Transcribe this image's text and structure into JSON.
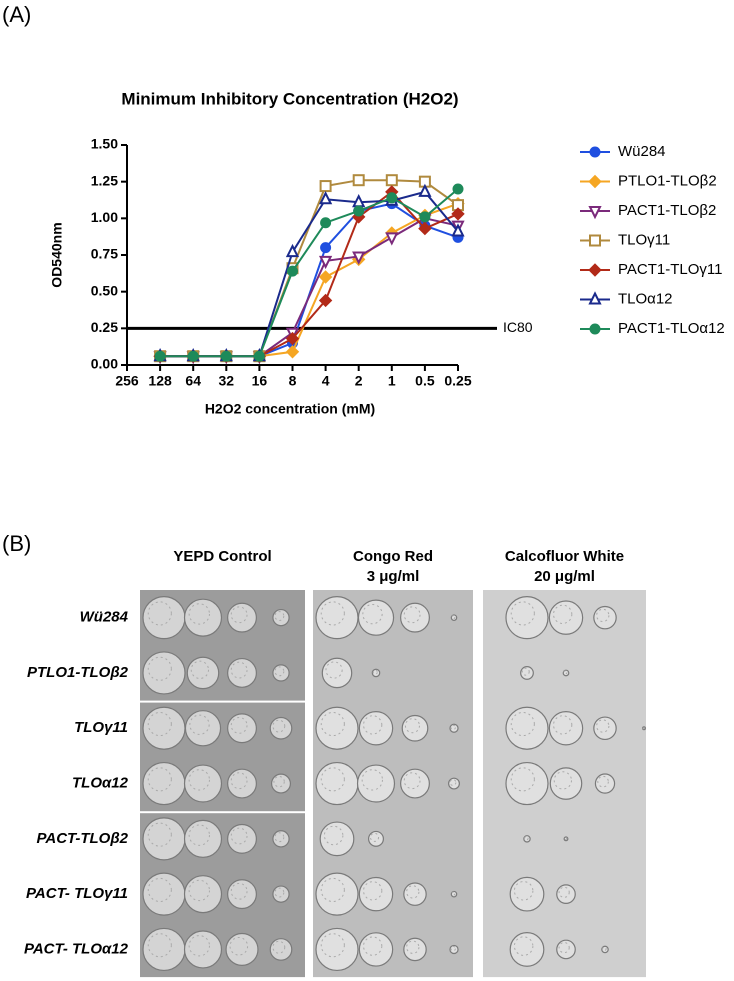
{
  "panel_a": {
    "label": "(A)"
  },
  "chart_data": {
    "type": "line",
    "title": "Minimum Inhibitory Concentration (H2O2)",
    "x_label": "H2O2 concentration (mM)",
    "y_label": "OD540nm",
    "x_scale": "log2-reversed",
    "x": [
      128,
      64,
      32,
      16,
      8,
      4,
      2,
      1,
      0.5,
      0.25
    ],
    "xlim": [
      256,
      0.25
    ],
    "xticks": [
      256,
      128,
      64,
      32,
      16,
      8,
      4,
      2,
      1,
      0.5,
      0.25
    ],
    "ylim": [
      0,
      1.5
    ],
    "yticks": [
      {
        "value": 0,
        "label": "0.00"
      },
      0.25,
      {
        "value": 0.5,
        "label": "0.50"
      },
      0.75,
      {
        "value": 1,
        "label": "1.00"
      },
      1.25,
      {
        "value": 1.5,
        "label": "1.50"
      }
    ],
    "hline": {
      "value": 0.25,
      "label": "IC80",
      "color": "#000000"
    },
    "legend": "right",
    "series": [
      {
        "name": "Wü284",
        "color": "#1f4fe0",
        "marker": "circle",
        "values": [
          0.06,
          0.06,
          0.06,
          0.06,
          0.15,
          0.8,
          1.05,
          1.1,
          0.95,
          0.87
        ]
      },
      {
        "name": "PTLO1-TLOβ2",
        "color": "#f5a623",
        "marker": "diamond",
        "values": [
          0.06,
          0.06,
          0.06,
          0.06,
          0.09,
          0.6,
          0.72,
          0.9,
          1.02,
          1.1
        ]
      },
      {
        "name": "PACT1-TLOβ2",
        "color": "#7b2a7b",
        "marker": "triangle-down-open",
        "values": [
          0.06,
          0.06,
          0.06,
          0.06,
          0.22,
          0.71,
          0.74,
          0.87,
          1.0,
          0.95
        ]
      },
      {
        "name": "TLOγ11",
        "color": "#b08a3e",
        "marker": "square-open",
        "values": [
          0.06,
          0.06,
          0.06,
          0.06,
          0.66,
          1.22,
          1.26,
          1.26,
          1.25,
          1.09
        ]
      },
      {
        "name": "PACT1-TLOγ11",
        "color": "#b22a18",
        "marker": "diamond",
        "values": [
          0.06,
          0.06,
          0.06,
          0.06,
          0.18,
          0.44,
          1.01,
          1.18,
          0.93,
          1.03
        ]
      },
      {
        "name": "TLOα12",
        "color": "#1a2a8c",
        "marker": "triangle-up-open",
        "values": [
          0.06,
          0.06,
          0.06,
          0.06,
          0.77,
          1.13,
          1.11,
          1.12,
          1.18,
          0.91
        ]
      },
      {
        "name": "PACT1-TLOα12",
        "color": "#1e8a5a",
        "marker": "circle",
        "values": [
          0.06,
          0.06,
          0.06,
          0.06,
          0.64,
          0.97,
          1.05,
          1.14,
          1.01,
          1.2
        ]
      }
    ]
  },
  "panel_b": {
    "label": "(B)",
    "columns": [
      {
        "title": "YEPD Control"
      },
      {
        "title": "Congo Red",
        "subtitle": "3 μg/ml"
      },
      {
        "title": "Calcofluor White",
        "subtitle": "20 μg/ml"
      }
    ],
    "rows": [
      "Wü284",
      "PTLO1-TLOβ2",
      "TLOγ11",
      "TLOα12",
      "PACT-TLOβ2",
      "PACT- TLOγ11",
      "PACT- TLOα12"
    ]
  }
}
